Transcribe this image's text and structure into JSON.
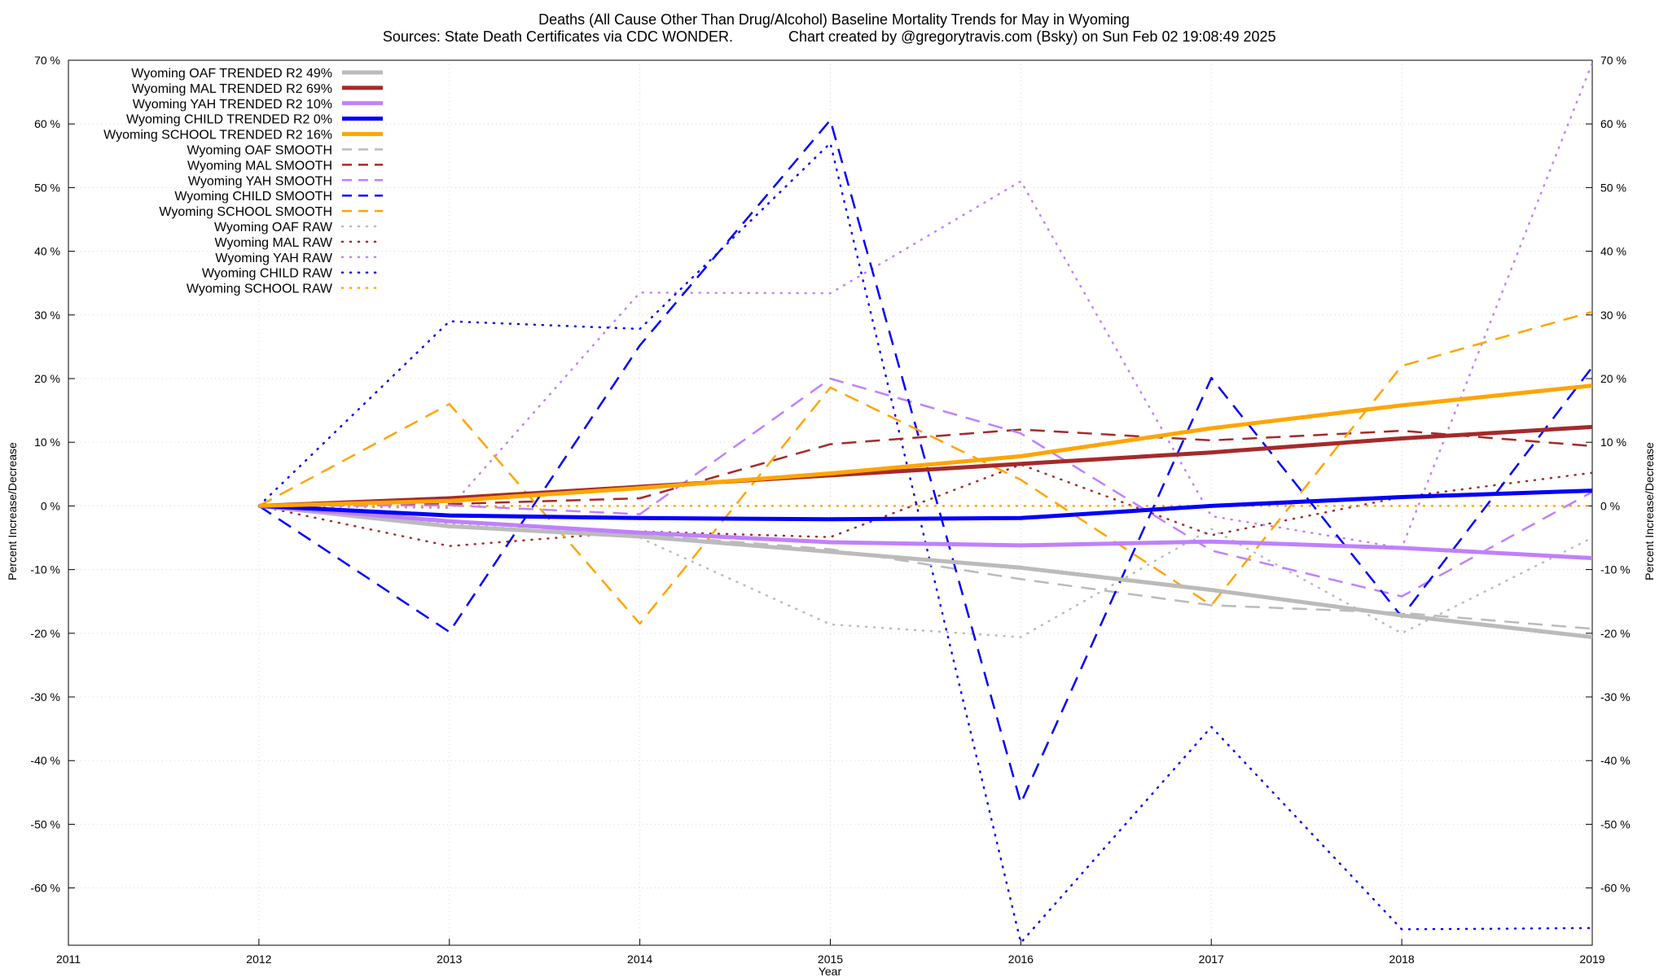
{
  "chart_data": {
    "type": "line",
    "title": "Deaths (All Cause Other Than Drug/Alcohol)  Baseline Mortality Trends for May in Wyoming",
    "subtitle_left": "Sources: State Death Certificates via CDC WONDER.",
    "subtitle_right": "Chart created by @gregorytravis.com (Bsky) on Sun Feb 02 19:08:49 2025",
    "xlabel": "Year",
    "ylabel": "Percent Increase/Decrease",
    "ylabel_right": "Percent Increase/Decrease",
    "xlim": [
      2011,
      2019
    ],
    "ylim": [
      -69,
      70
    ],
    "x_ticks": [
      "2011",
      "2012",
      "2013",
      "2014",
      "2015",
      "2016",
      "2017",
      "2018",
      "2019"
    ],
    "y_ticks": [
      {
        "value": 70,
        "label": "70 %"
      },
      {
        "value": 60,
        "label": "60 %"
      },
      {
        "value": 50,
        "label": "50 %"
      },
      {
        "value": 40,
        "label": "40 %"
      },
      {
        "value": 30,
        "label": "30 %"
      },
      {
        "value": 20,
        "label": "20 %"
      },
      {
        "value": 10,
        "label": "10 %"
      },
      {
        "value": 0,
        "label": "0 %"
      },
      {
        "value": -10,
        "label": "-10 %"
      },
      {
        "value": -20,
        "label": "-20 %"
      },
      {
        "value": -30,
        "label": "-30 %"
      },
      {
        "value": -40,
        "label": "-40 %"
      },
      {
        "value": -50,
        "label": "-50 %"
      },
      {
        "value": -60,
        "label": "-60 %"
      }
    ],
    "grid": true,
    "legend_position": "top-left",
    "series": [
      {
        "name": "Wyoming OAF TRENDED R2  49%",
        "style": "solid",
        "color": "#bbbbbb",
        "x": [
          2012,
          2013,
          2014,
          2015,
          2016,
          2017,
          2018,
          2019
        ],
        "y": [
          0,
          -3.2,
          -4.8,
          -7.2,
          -9.7,
          -13.2,
          -17.2,
          -20.6
        ]
      },
      {
        "name": "Wyoming MAL TRENDED R2  69%",
        "style": "solid",
        "color": "#a52a2a",
        "x": [
          2012,
          2013,
          2014,
          2015,
          2016,
          2017,
          2018,
          2019
        ],
        "y": [
          0,
          1.2,
          3.0,
          4.8,
          6.6,
          8.4,
          10.6,
          12.4
        ]
      },
      {
        "name": "Wyoming YAH TRENDED R2  10%",
        "style": "solid",
        "color": "#c080ff",
        "x": [
          2012,
          2013,
          2014,
          2015,
          2016,
          2017,
          2018,
          2019
        ],
        "y": [
          0,
          -2.4,
          -4.2,
          -5.7,
          -6.2,
          -5.6,
          -6.6,
          -8.2
        ]
      },
      {
        "name": "Wyoming CHILD TRENDED R2   0%",
        "style": "solid",
        "color": "#0000ff",
        "x": [
          2012,
          2013,
          2014,
          2015,
          2016,
          2017,
          2018,
          2019
        ],
        "y": [
          0,
          -1.5,
          -1.9,
          -2.1,
          -1.9,
          0,
          1.4,
          2.4
        ]
      },
      {
        "name": "Wyoming SCHOOL TRENDED R2  16%",
        "style": "solid",
        "color": "#ffa500",
        "x": [
          2012,
          2013,
          2014,
          2015,
          2016,
          2017,
          2018,
          2019
        ],
        "y": [
          0,
          0.8,
          2.8,
          5.1,
          7.8,
          12.2,
          15.8,
          18.9
        ]
      },
      {
        "name": "Wyoming OAF SMOOTH",
        "style": "dashed",
        "color": "#bbbbbb",
        "x": [
          2012,
          2013,
          2014,
          2015,
          2016,
          2017,
          2018,
          2019
        ],
        "y": [
          0,
          -2.5,
          -4.5,
          -6.8,
          -11.5,
          -15.6,
          -16.8,
          -19.3
        ]
      },
      {
        "name": "Wyoming MAL SMOOTH",
        "style": "dashed",
        "color": "#a52a2a",
        "x": [
          2012,
          2013,
          2014,
          2015,
          2016,
          2017,
          2018,
          2019
        ],
        "y": [
          0,
          0.3,
          1.2,
          9.7,
          12.0,
          10.3,
          11.8,
          9.4
        ]
      },
      {
        "name": "Wyoming YAH SMOOTH",
        "style": "dashed",
        "color": "#c080ff",
        "x": [
          2012,
          2013,
          2014,
          2015,
          2016,
          2017,
          2018,
          2019
        ],
        "y": [
          0,
          0.1,
          -1.3,
          20.0,
          11.4,
          -7.0,
          -14.2,
          2.2
        ]
      },
      {
        "name": "Wyoming CHILD SMOOTH",
        "style": "dashed",
        "color": "#0000ff",
        "x": [
          2012,
          2013,
          2014,
          2015,
          2016,
          2017,
          2018,
          2019
        ],
        "y": [
          0,
          -19.8,
          25.2,
          60.6,
          -46.7,
          20.1,
          -17.4,
          21.8
        ]
      },
      {
        "name": "Wyoming SCHOOL SMOOTH",
        "style": "dashed",
        "color": "#ffa500",
        "x": [
          2012,
          2013,
          2014,
          2015,
          2016,
          2017,
          2018,
          2019
        ],
        "y": [
          0,
          16.0,
          -18.5,
          18.6,
          4.1,
          -15.6,
          22.0,
          30.5
        ]
      },
      {
        "name": "Wyoming OAF RAW",
        "style": "dotted",
        "color": "#bbbbbb",
        "x": [
          2012,
          2013,
          2014,
          2015,
          2016,
          2017,
          2018,
          2019
        ],
        "y": [
          0,
          -2.8,
          -5.0,
          -18.6,
          -20.6,
          -3.6,
          -20.0,
          -5.0
        ]
      },
      {
        "name": "Wyoming MAL RAW",
        "style": "dotted",
        "color": "#a52a2a",
        "x": [
          2012,
          2013,
          2014,
          2015,
          2016,
          2017,
          2018,
          2019
        ],
        "y": [
          0,
          -6.3,
          -4.0,
          -4.9,
          6.5,
          -4.6,
          1.4,
          5.2
        ]
      },
      {
        "name": "Wyoming YAH RAW",
        "style": "dotted",
        "color": "#c080ff",
        "x": [
          2012,
          2013,
          2014,
          2015,
          2016,
          2017,
          2018,
          2019
        ],
        "y": [
          0,
          -0.3,
          33.5,
          33.4,
          51.0,
          -1.6,
          -6.6,
          69.6
        ]
      },
      {
        "name": "Wyoming CHILD RAW",
        "style": "dotted",
        "color": "#0000ff",
        "x": [
          2012,
          2013,
          2014,
          2015,
          2016,
          2017,
          2018,
          2019
        ],
        "y": [
          0,
          29.0,
          27.8,
          57.0,
          -68.6,
          -34.7,
          -66.5,
          -66.3
        ]
      },
      {
        "name": "Wyoming SCHOOL RAW",
        "style": "dotted",
        "color": "#ffa500",
        "x": [
          2012,
          2013,
          2014,
          2015,
          2016,
          2017,
          2018,
          2019
        ],
        "y": [
          0,
          0,
          0,
          0,
          0,
          0,
          0,
          0
        ]
      }
    ]
  }
}
